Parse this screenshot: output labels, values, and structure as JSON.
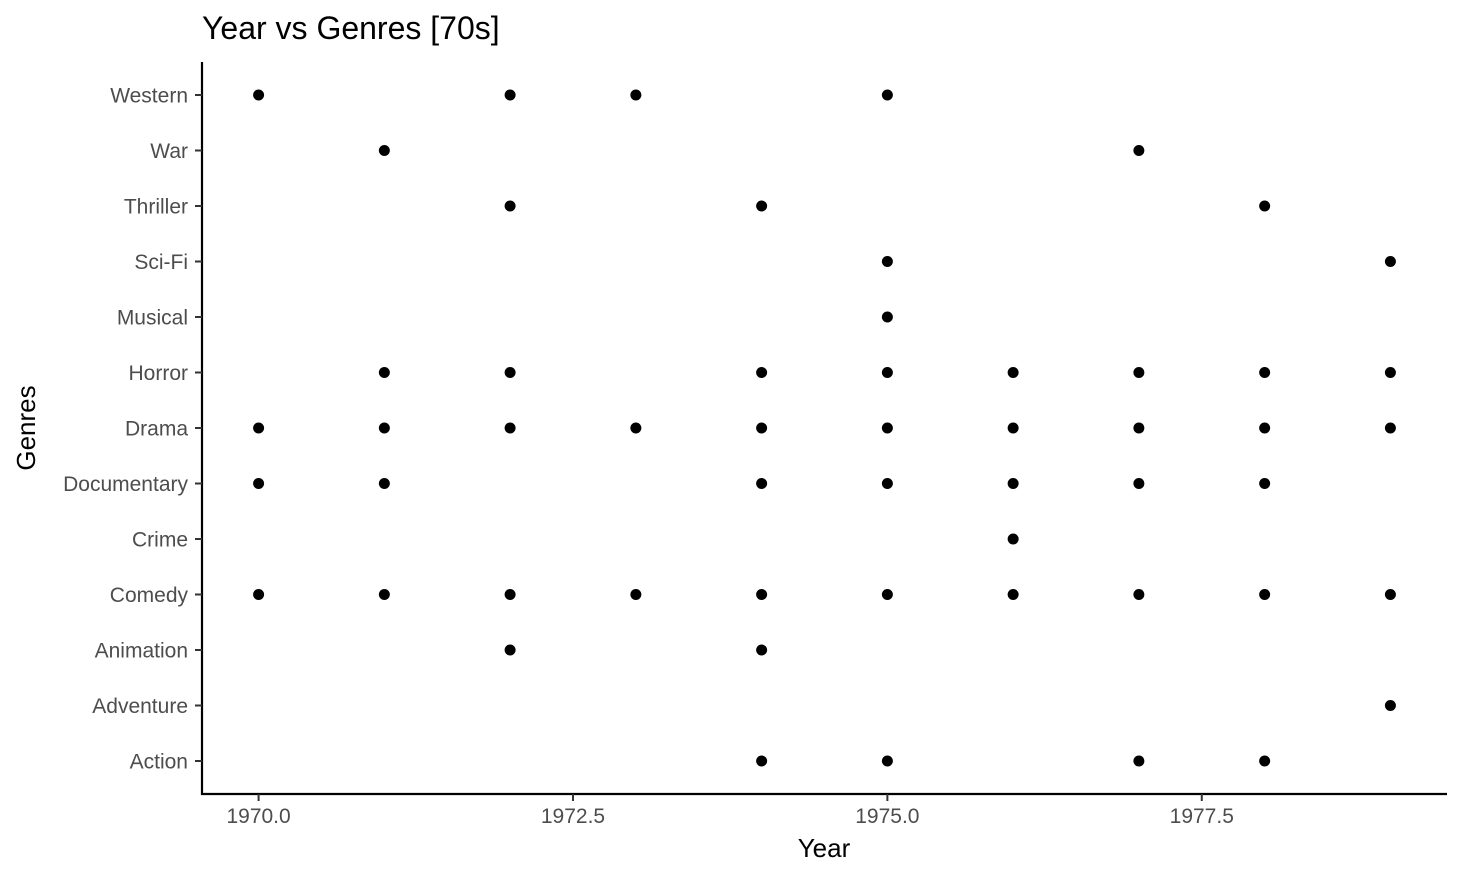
{
  "chart_data": {
    "type": "scatter",
    "title": "Year vs Genres [70s]",
    "xlabel": "Year",
    "ylabel": "Genres",
    "xlim": [
      1969.55,
      1979.45
    ],
    "x_ticks": [
      1970.0,
      1972.5,
      1975.0,
      1977.5
    ],
    "x_tick_labels": [
      "1970.0",
      "1972.5",
      "1975.0",
      "1977.5"
    ],
    "categories": [
      "Action",
      "Adventure",
      "Animation",
      "Comedy",
      "Crime",
      "Documentary",
      "Drama",
      "Horror",
      "Musical",
      "Sci-Fi",
      "Thriller",
      "War",
      "Western"
    ],
    "grid": false,
    "point_color": "#000000",
    "points": [
      {
        "x": 1970,
        "y": "Western"
      },
      {
        "x": 1972,
        "y": "Western"
      },
      {
        "x": 1973,
        "y": "Western"
      },
      {
        "x": 1975,
        "y": "Western"
      },
      {
        "x": 1971,
        "y": "War"
      },
      {
        "x": 1977,
        "y": "War"
      },
      {
        "x": 1972,
        "y": "Thriller"
      },
      {
        "x": 1974,
        "y": "Thriller"
      },
      {
        "x": 1978,
        "y": "Thriller"
      },
      {
        "x": 1975,
        "y": "Sci-Fi"
      },
      {
        "x": 1979,
        "y": "Sci-Fi"
      },
      {
        "x": 1975,
        "y": "Musical"
      },
      {
        "x": 1971,
        "y": "Horror"
      },
      {
        "x": 1972,
        "y": "Horror"
      },
      {
        "x": 1974,
        "y": "Horror"
      },
      {
        "x": 1975,
        "y": "Horror"
      },
      {
        "x": 1976,
        "y": "Horror"
      },
      {
        "x": 1977,
        "y": "Horror"
      },
      {
        "x": 1978,
        "y": "Horror"
      },
      {
        "x": 1979,
        "y": "Horror"
      },
      {
        "x": 1970,
        "y": "Drama"
      },
      {
        "x": 1971,
        "y": "Drama"
      },
      {
        "x": 1972,
        "y": "Drama"
      },
      {
        "x": 1973,
        "y": "Drama"
      },
      {
        "x": 1974,
        "y": "Drama"
      },
      {
        "x": 1975,
        "y": "Drama"
      },
      {
        "x": 1976,
        "y": "Drama"
      },
      {
        "x": 1977,
        "y": "Drama"
      },
      {
        "x": 1978,
        "y": "Drama"
      },
      {
        "x": 1979,
        "y": "Drama"
      },
      {
        "x": 1970,
        "y": "Documentary"
      },
      {
        "x": 1971,
        "y": "Documentary"
      },
      {
        "x": 1974,
        "y": "Documentary"
      },
      {
        "x": 1975,
        "y": "Documentary"
      },
      {
        "x": 1976,
        "y": "Documentary"
      },
      {
        "x": 1977,
        "y": "Documentary"
      },
      {
        "x": 1978,
        "y": "Documentary"
      },
      {
        "x": 1976,
        "y": "Crime"
      },
      {
        "x": 1970,
        "y": "Comedy"
      },
      {
        "x": 1971,
        "y": "Comedy"
      },
      {
        "x": 1972,
        "y": "Comedy"
      },
      {
        "x": 1973,
        "y": "Comedy"
      },
      {
        "x": 1974,
        "y": "Comedy"
      },
      {
        "x": 1975,
        "y": "Comedy"
      },
      {
        "x": 1976,
        "y": "Comedy"
      },
      {
        "x": 1977,
        "y": "Comedy"
      },
      {
        "x": 1978,
        "y": "Comedy"
      },
      {
        "x": 1979,
        "y": "Comedy"
      },
      {
        "x": 1972,
        "y": "Animation"
      },
      {
        "x": 1974,
        "y": "Animation"
      },
      {
        "x": 1979,
        "y": "Adventure"
      },
      {
        "x": 1974,
        "y": "Action"
      },
      {
        "x": 1975,
        "y": "Action"
      },
      {
        "x": 1977,
        "y": "Action"
      },
      {
        "x": 1978,
        "y": "Action"
      }
    ]
  }
}
